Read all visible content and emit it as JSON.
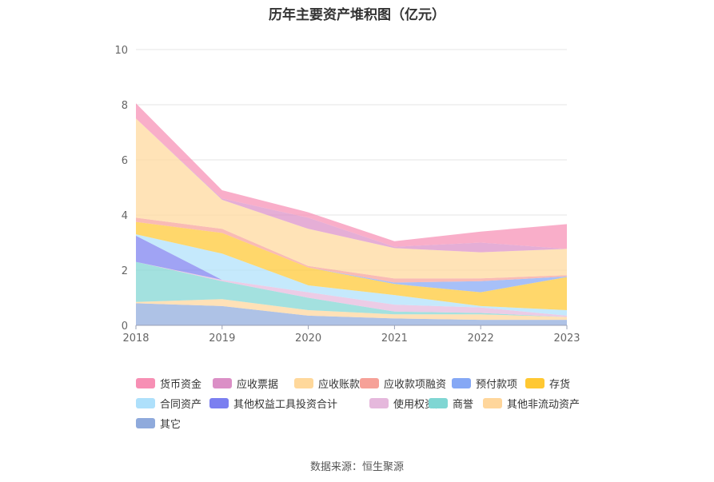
{
  "chart_data": {
    "type": "area",
    "stacked": true,
    "title": "历年主要资产堆积图（亿元）",
    "x": [
      "2018",
      "2019",
      "2020",
      "2021",
      "2022",
      "2023"
    ],
    "ylim": [
      0,
      10
    ],
    "yticks": [
      "0",
      "2",
      "4",
      "6",
      "8",
      "10"
    ],
    "grid": true,
    "legend_position": "bottom",
    "series": [
      {
        "name": "其它",
        "color": "#8faadc",
        "values": [
          0.8,
          0.7,
          0.35,
          0.25,
          0.2,
          0.2
        ]
      },
      {
        "name": "其他非流动资产",
        "color": "#ffd69b",
        "values": [
          0.05,
          0.25,
          0.2,
          0.15,
          0.2,
          0.1
        ]
      },
      {
        "name": "商誉",
        "color": "#7fd6d3",
        "values": [
          1.45,
          0.65,
          0.45,
          0.1,
          0.05,
          0.0
        ]
      },
      {
        "name": "使用权资产",
        "color": "#e5b8dc",
        "values": [
          0.0,
          0.05,
          0.2,
          0.25,
          0.2,
          0.05
        ]
      },
      {
        "name": "其他权益工具投资合计",
        "color": "#7b7ff0",
        "values": [
          0.95,
          0.0,
          0.0,
          0.0,
          0.0,
          0.0
        ]
      },
      {
        "name": "合同资产",
        "color": "#aee0fb",
        "values": [
          0.05,
          0.95,
          0.25,
          0.35,
          0.05,
          0.2
        ]
      },
      {
        "name": "存货",
        "color": "#ffc832",
        "values": [
          0.45,
          0.75,
          0.65,
          0.4,
          0.5,
          1.2
        ]
      },
      {
        "name": "预付款项",
        "color": "#85a8f5",
        "values": [
          0.0,
          0.0,
          0.0,
          0.05,
          0.4,
          0.02
        ]
      },
      {
        "name": "应收款项融资",
        "color": "#f6a198",
        "values": [
          0.15,
          0.15,
          0.05,
          0.15,
          0.1,
          0.05
        ]
      },
      {
        "name": "应收账款",
        "color": "#ffd89b",
        "values": [
          3.6,
          1.05,
          1.35,
          1.1,
          0.95,
          0.95
        ]
      },
      {
        "name": "应收票据",
        "color": "#db8fc6",
        "values": [
          0.0,
          0.05,
          0.4,
          0.05,
          0.35,
          0.0
        ]
      },
      {
        "name": "货币资金",
        "color": "#f78fb4",
        "values": [
          0.55,
          0.3,
          0.2,
          0.2,
          0.4,
          0.9
        ]
      }
    ],
    "legend_order": [
      "货币资金",
      "应收票据",
      "应收账款",
      "应收款项融资",
      "预付款项",
      "存货",
      "合同资产",
      "其他权益工具投资合计",
      "使用权资产",
      "商誉",
      "其他非流动资产",
      "其它"
    ]
  },
  "source": "数据来源：恒生聚源"
}
